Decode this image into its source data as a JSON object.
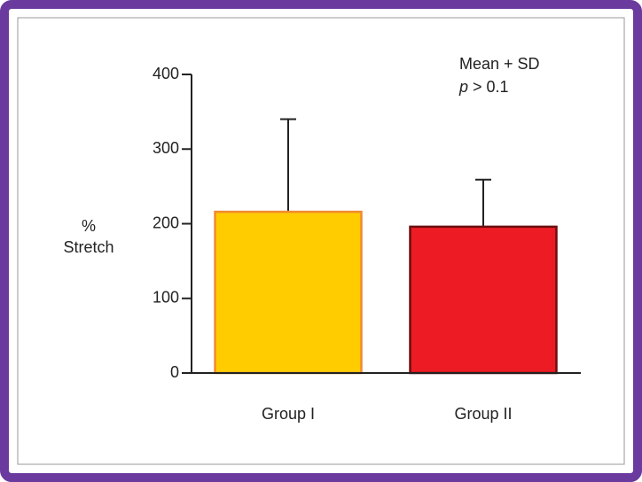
{
  "chart_data": {
    "type": "bar",
    "categories": [
      "Group I",
      "Group II"
    ],
    "values": [
      216,
      196
    ],
    "errors": [
      124,
      63
    ],
    "colors": [
      "#ffcc00",
      "#ed1c24"
    ],
    "edge_colors": [
      "#f08a30",
      "#6b0f0f"
    ],
    "ylabel": [
      "%",
      "Stretch"
    ],
    "annotation": [
      "Mean + SD",
      [
        "p",
        "> 0.1"
      ]
    ],
    "ylim": [
      0,
      400
    ],
    "yticks": [
      0,
      100,
      200,
      300,
      400
    ]
  }
}
